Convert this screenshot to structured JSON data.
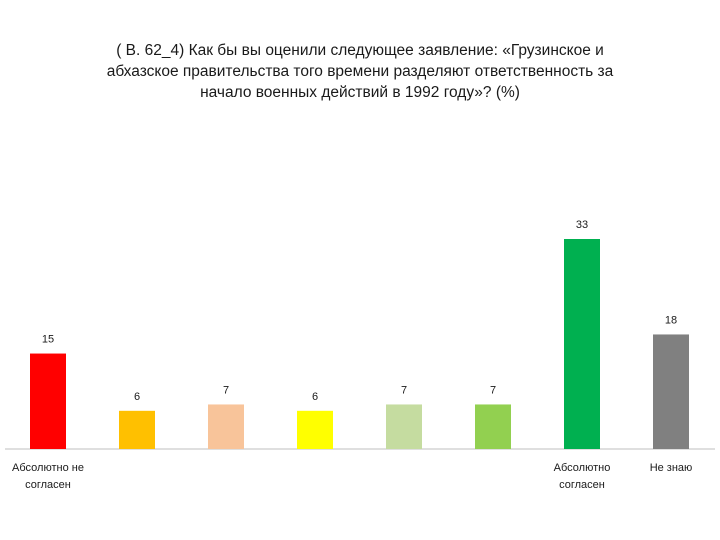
{
  "title_lines": [
    "( В. 62_4)  Как бы вы оценили следующее заявление: «Грузинское и",
    "абхазское правительства того времени  разделяют ответственность за",
    "начало военных действий в 1992 году»? (%)"
  ],
  "chart_data": {
    "type": "bar",
    "title": "( В. 62_4)  Как бы вы оценили следующее заявление: «Грузинское и абхазское правительства того времени  разделяют ответственность за начало военных действий в 1992 году»? (%)",
    "categories": [
      [
        "Абсолютно не",
        "согласен"
      ],
      [],
      [],
      [],
      [],
      [],
      [
        "Абсолютно",
        "согласен"
      ],
      [
        "Не знаю"
      ]
    ],
    "values": [
      15,
      6,
      7,
      6,
      7,
      7,
      33,
      18
    ],
    "colors": [
      "#ff0000",
      "#ffc000",
      "#f8c49a",
      "#ffff00",
      "#c5dca0",
      "#92d050",
      "#00b050",
      "#808080"
    ],
    "ylim": [
      0,
      33
    ],
    "xlabel": "",
    "ylabel": "",
    "grid": false,
    "legend": "none"
  }
}
